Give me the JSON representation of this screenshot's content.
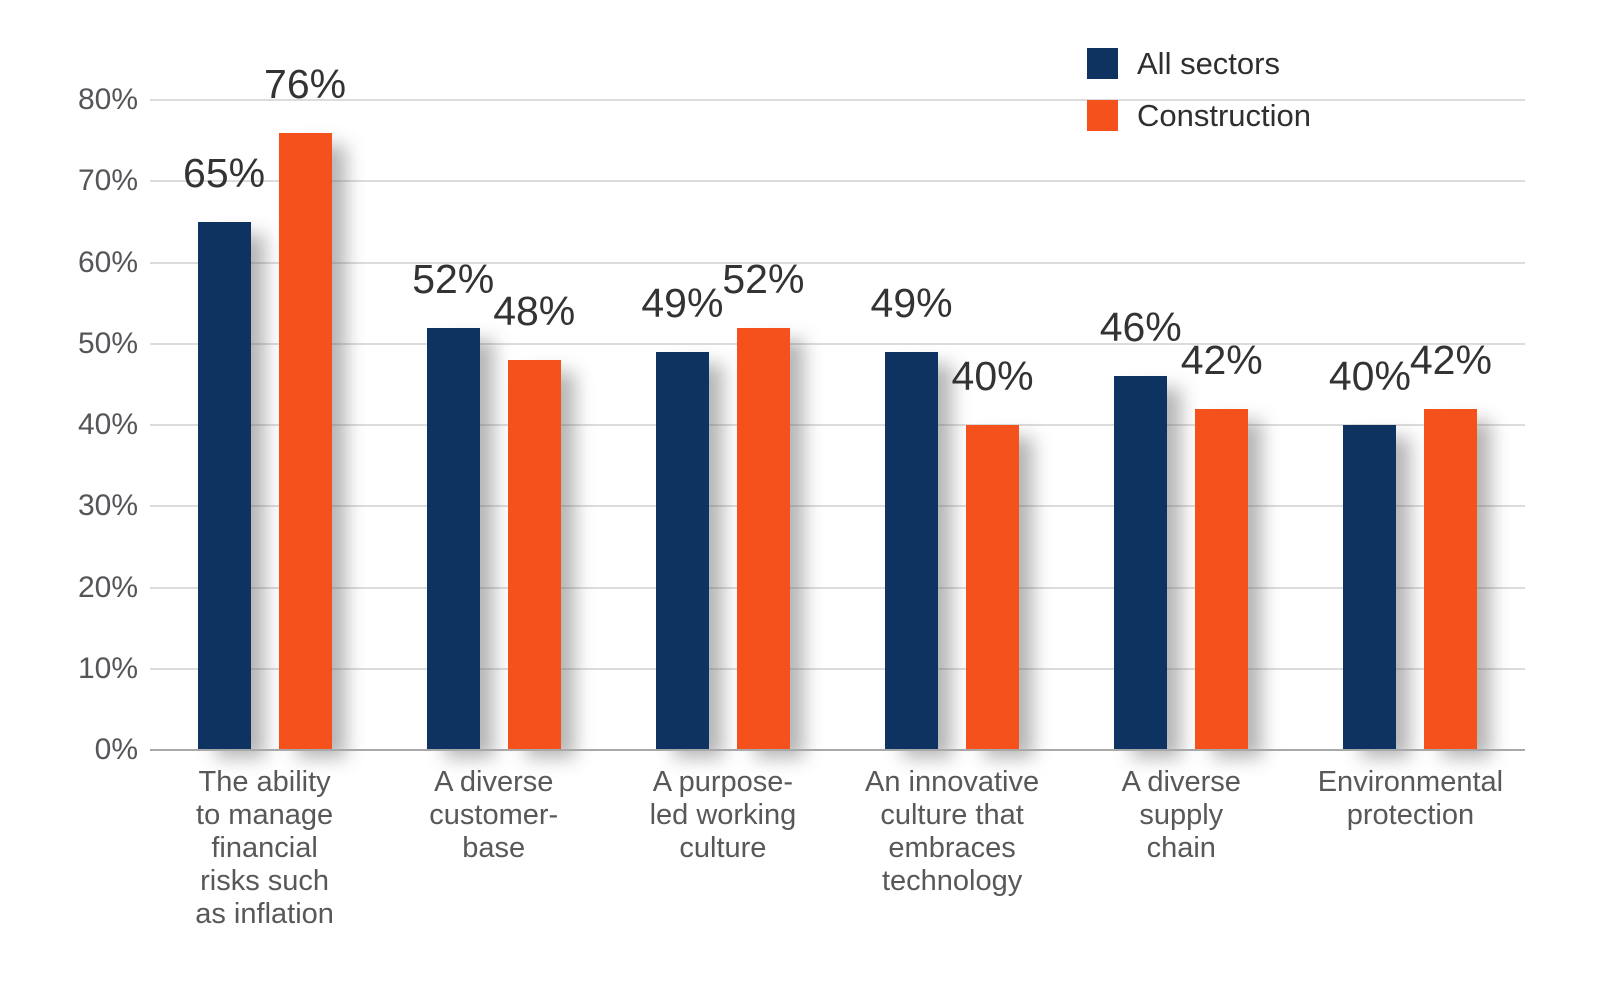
{
  "chart_data": {
    "type": "bar",
    "title": "",
    "xlabel": "",
    "ylabel": "",
    "categories": [
      "The ability\nto manage\nfinancial\nrisks such\nas inflation",
      "A diverse\ncustomer-\nbase",
      "A purpose-\nled working\nculture",
      "An innovative\nculture that\nembraces\ntechnology",
      "A diverse\nsupply\nchain",
      "Environmental\nprotection"
    ],
    "series": [
      {
        "name": "All sectors",
        "color": "#0e3361",
        "values": [
          65,
          52,
          49,
          49,
          46,
          40
        ],
        "labels": [
          "65%",
          "52%",
          "49%",
          "49%",
          "46%",
          "40%"
        ]
      },
      {
        "name": "Construction",
        "color": "#f5511d",
        "values": [
          76,
          48,
          52,
          40,
          42,
          42
        ],
        "labels": [
          "76%",
          "48%",
          "52%",
          "40%",
          "42%",
          "42%"
        ]
      }
    ],
    "ylim": [
      0,
      80
    ],
    "y_ticks": [
      "0%",
      "10%",
      "20%",
      "30%",
      "40%",
      "50%",
      "60%",
      "70%",
      "80%"
    ],
    "grid": true,
    "legend_position": "top-right",
    "colors": {
      "grid": "#dcdcdc",
      "axis_line": "#a8a8a8",
      "tick_label": "#56565a",
      "category_label": "#58585a",
      "value_label": "#333333"
    }
  }
}
